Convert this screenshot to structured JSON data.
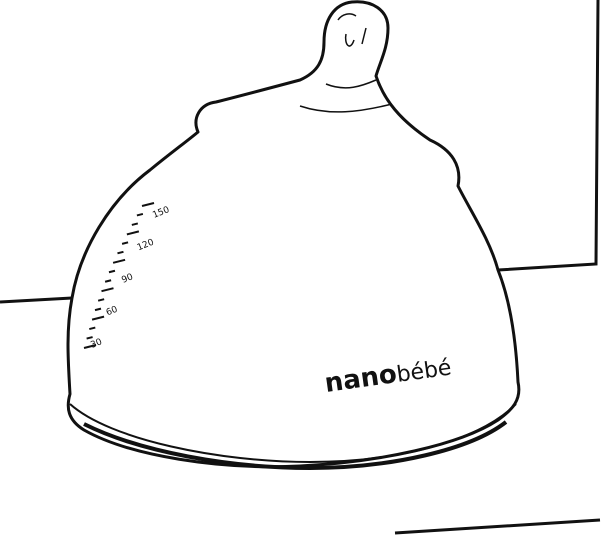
{
  "brand": {
    "prefix": "nano",
    "suffix": "bébé"
  },
  "scale_marks": {
    "labels": [
      "150",
      "120",
      "90",
      "60",
      "30"
    ]
  },
  "colors": {
    "ink": "#111111",
    "background": "#ffffff"
  }
}
